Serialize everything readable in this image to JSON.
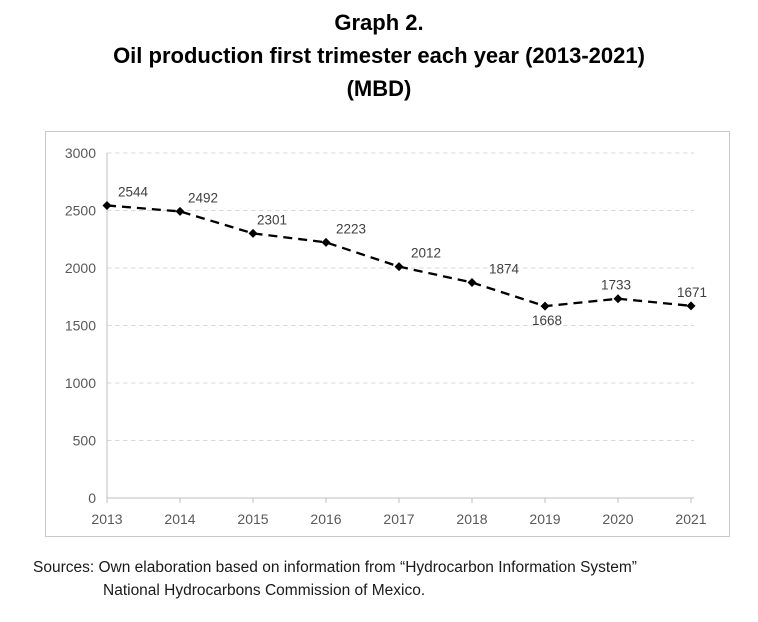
{
  "title": {
    "line1": "Graph 2.",
    "line2": "Oil production first trimester each year (2013-2021)",
    "line3": "(MBD)"
  },
  "chart_data": {
    "type": "line",
    "title": "Graph 2. Oil production first trimester each year (2013-2021) (MBD)",
    "categories": [
      "2013",
      "2014",
      "2015",
      "2016",
      "2017",
      "2018",
      "2019",
      "2020",
      "2021"
    ],
    "series": [
      {
        "name": "Oil production first trimester (MBD)",
        "values": [
          2544,
          2492,
          2301,
          2223,
          2012,
          1874,
          1668,
          1733,
          1671
        ]
      }
    ],
    "xlabel": "",
    "ylabel": "",
    "ylim": [
      0,
      3000
    ],
    "yticks": [
      0,
      500,
      1000,
      1500,
      2000,
      2500,
      3000
    ],
    "grid": true,
    "gridline_style": "dashed",
    "legend": "none",
    "line_style": "dashed",
    "marker": "diamond",
    "data_labels_shown": true,
    "data_label_placement": [
      {
        "dx": 26,
        "side": "above"
      },
      {
        "dx": 23,
        "side": "above"
      },
      {
        "dx": 19,
        "side": "above"
      },
      {
        "dx": 25,
        "side": "above"
      },
      {
        "dx": 27,
        "side": "above"
      },
      {
        "dx": 32,
        "side": "above"
      },
      {
        "dx": 2,
        "side": "below"
      },
      {
        "dx": -2,
        "side": "above"
      },
      {
        "dx": 1,
        "side": "above"
      }
    ],
    "colors": {
      "line": "#000000",
      "marker": "#000000",
      "gridlines": "#d9d9d9",
      "axis": "#bfbfbf",
      "tick_labels": "#595959",
      "data_labels": "#404040",
      "chart_border": "#c9c9c9"
    }
  },
  "source": {
    "line1": "Sources: Own elaboration based on information from “Hydrocarbon Information System”",
    "line2": "National Hydrocarbons Commission of Mexico."
  }
}
